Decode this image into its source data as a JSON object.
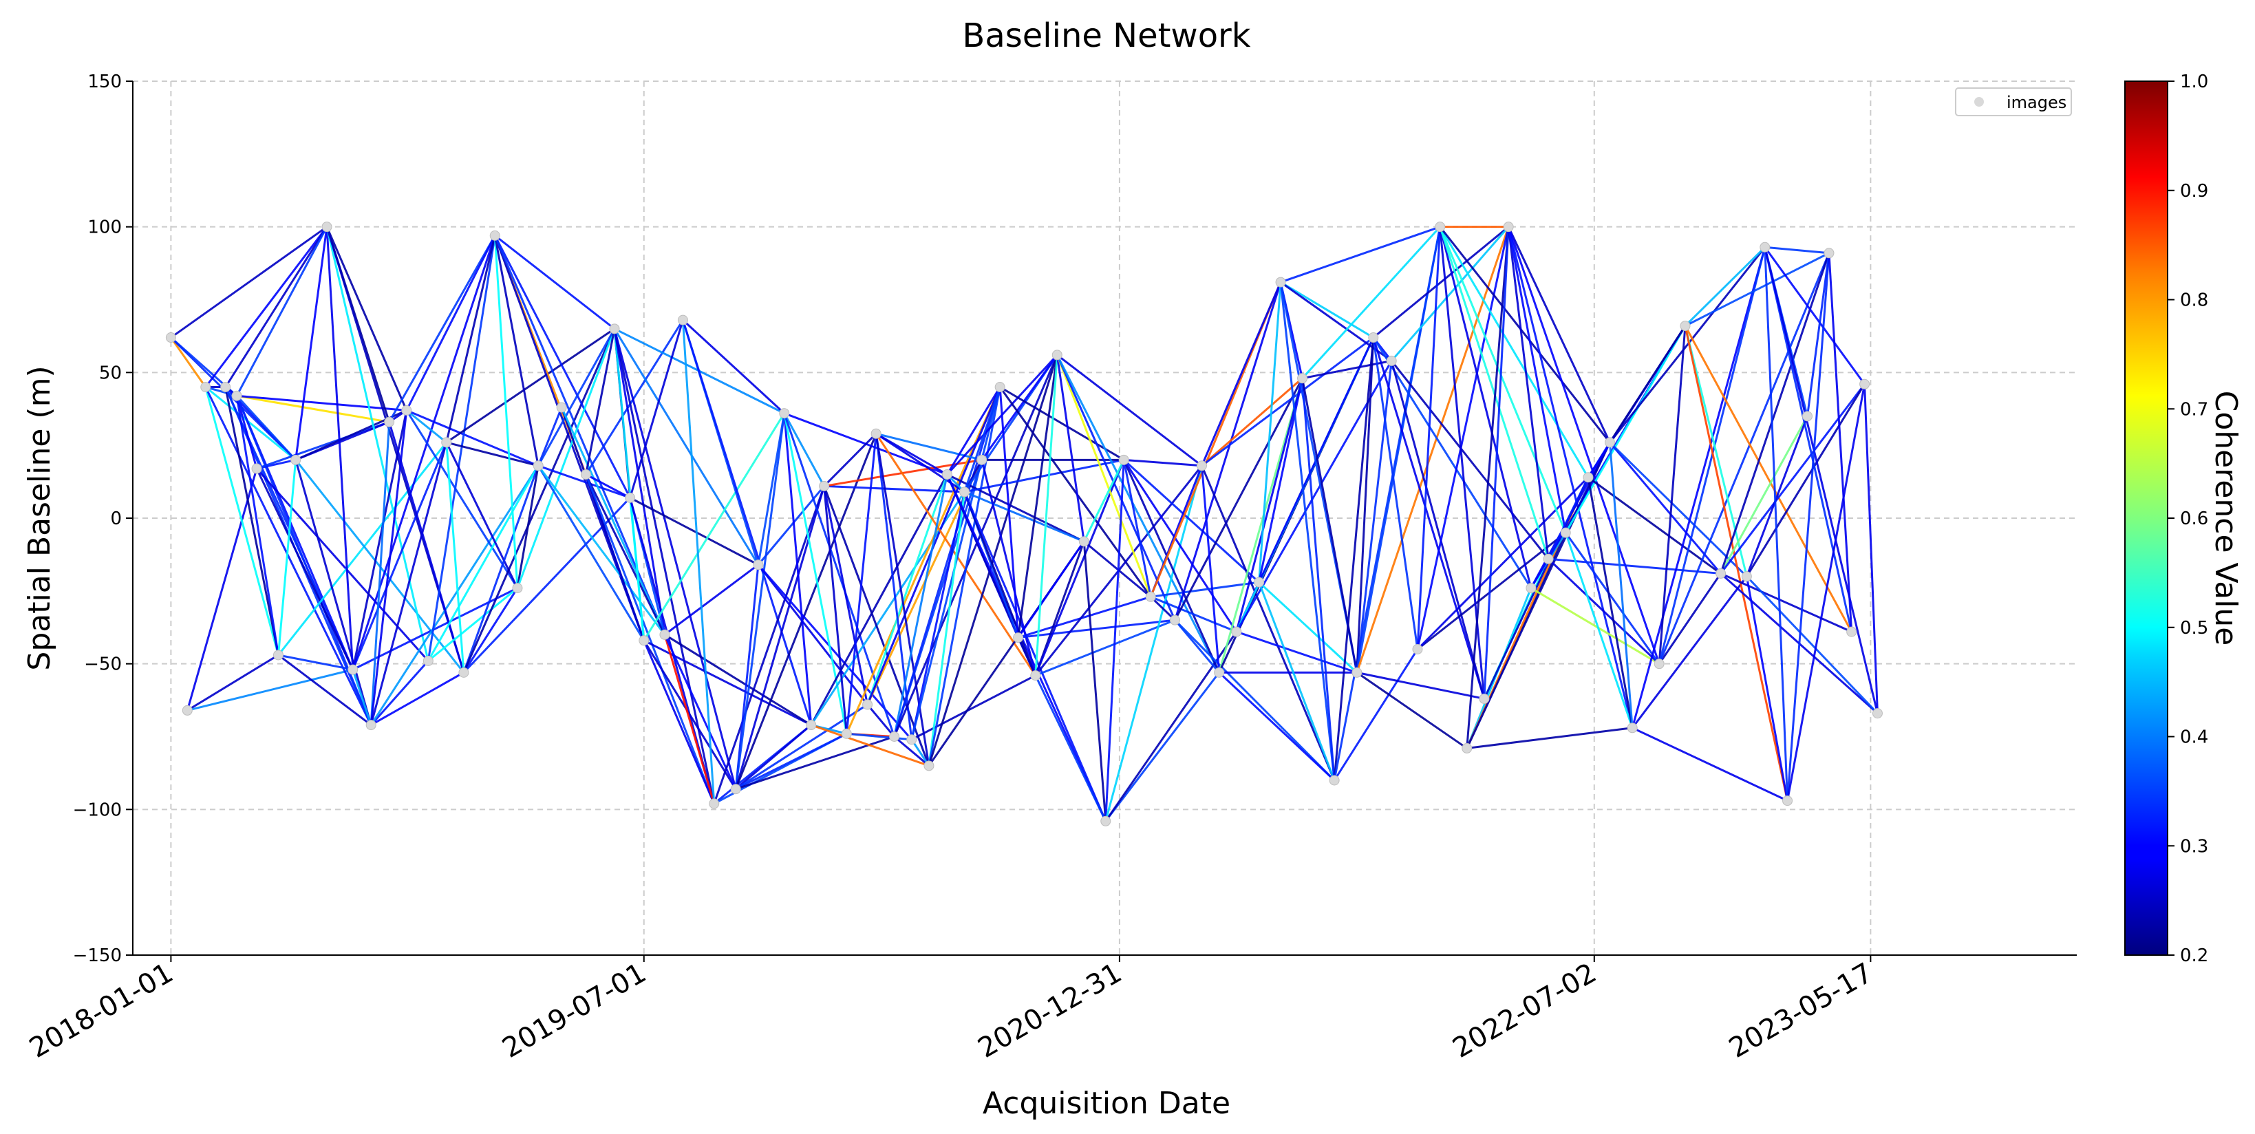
{
  "chart_data": {
    "type": "network",
    "title": "Baseline Network",
    "xlabel": "Acquisition Date",
    "ylabel": "Spatial Baseline (m)",
    "xlim": [
      "2017-11-18",
      "2024-01-10"
    ],
    "ylim": [
      -150,
      150
    ],
    "x_ticks": [
      "2018-01-01",
      "2019-07-01",
      "2020-12-31",
      "2022-07-02",
      "2023-05-17"
    ],
    "y_ticks": [
      150,
      100,
      50,
      0,
      -50,
      -100,
      -150
    ],
    "grid": true,
    "legend": {
      "position": "top-right",
      "entries": [
        "images"
      ]
    },
    "colorbar": {
      "label": "Coherence Value",
      "cmap": "jet",
      "min": 0.2,
      "max": 1.0,
      "ticks": [
        "1.0",
        "0.9",
        "0.8",
        "0.7",
        "0.6",
        "0.5",
        "0.4",
        "0.3",
        "0.2"
      ]
    },
    "images": [
      {
        "date": "2018-01-01",
        "baseline": 62
      },
      {
        "date": "2018-01-20",
        "baseline": -66
      },
      {
        "date": "2018-02-10",
        "baseline": 45
      },
      {
        "date": "2018-03-05",
        "baseline": 45
      },
      {
        "date": "2018-03-18",
        "baseline": 42
      },
      {
        "date": "2018-04-10",
        "baseline": 17
      },
      {
        "date": "2018-05-05",
        "baseline": -47
      },
      {
        "date": "2018-05-25",
        "baseline": 20
      },
      {
        "date": "2018-06-30",
        "baseline": 100
      },
      {
        "date": "2018-07-30",
        "baseline": -52
      },
      {
        "date": "2018-08-20",
        "baseline": -71
      },
      {
        "date": "2018-09-10",
        "baseline": 33
      },
      {
        "date": "2018-09-30",
        "baseline": 37
      },
      {
        "date": "2018-10-25",
        "baseline": -49
      },
      {
        "date": "2018-11-15",
        "baseline": 26
      },
      {
        "date": "2018-12-05",
        "baseline": -53
      },
      {
        "date": "2019-01-10",
        "baseline": 97
      },
      {
        "date": "2019-02-05",
        "baseline": -24
      },
      {
        "date": "2019-03-01",
        "baseline": 18
      },
      {
        "date": "2019-03-28",
        "baseline": 38
      },
      {
        "date": "2019-04-25",
        "baseline": 15
      },
      {
        "date": "2019-05-28",
        "baseline": 65
      },
      {
        "date": "2019-06-15",
        "baseline": 7
      },
      {
        "date": "2019-07-01",
        "baseline": -42
      },
      {
        "date": "2019-07-25",
        "baseline": -40
      },
      {
        "date": "2019-08-15",
        "baseline": 68
      },
      {
        "date": "2019-09-20",
        "baseline": -98
      },
      {
        "date": "2019-10-15",
        "baseline": -93
      },
      {
        "date": "2019-11-10",
        "baseline": -16
      },
      {
        "date": "2019-12-10",
        "baseline": 36
      },
      {
        "date": "2020-01-10",
        "baseline": -71
      },
      {
        "date": "2020-01-25",
        "baseline": 11
      },
      {
        "date": "2020-02-20",
        "baseline": -74
      },
      {
        "date": "2020-03-15",
        "baseline": -64
      },
      {
        "date": "2020-03-25",
        "baseline": 29
      },
      {
        "date": "2020-04-15",
        "baseline": -75
      },
      {
        "date": "2020-05-05",
        "baseline": -76
      },
      {
        "date": "2020-05-25",
        "baseline": -85
      },
      {
        "date": "2020-06-15",
        "baseline": 15
      },
      {
        "date": "2020-07-05",
        "baseline": 9
      },
      {
        "date": "2020-07-25",
        "baseline": 20
      },
      {
        "date": "2020-08-15",
        "baseline": 45
      },
      {
        "date": "2020-09-05",
        "baseline": -41
      },
      {
        "date": "2020-09-25",
        "baseline": -54
      },
      {
        "date": "2020-10-20",
        "baseline": 56
      },
      {
        "date": "2020-11-20",
        "baseline": -8
      },
      {
        "date": "2020-12-15",
        "baseline": -104
      },
      {
        "date": "2021-01-05",
        "baseline": 20
      },
      {
        "date": "2021-02-05",
        "baseline": -27
      },
      {
        "date": "2021-03-05",
        "baseline": -35
      },
      {
        "date": "2021-04-05",
        "baseline": 18
      },
      {
        "date": "2021-04-25",
        "baseline": -53
      },
      {
        "date": "2021-05-15",
        "baseline": -39
      },
      {
        "date": "2021-06-10",
        "baseline": -22
      },
      {
        "date": "2021-07-05",
        "baseline": 81
      },
      {
        "date": "2021-07-30",
        "baseline": 48
      },
      {
        "date": "2021-09-05",
        "baseline": -90
      },
      {
        "date": "2021-10-01",
        "baseline": -53
      },
      {
        "date": "2021-10-20",
        "baseline": 62
      },
      {
        "date": "2021-11-10",
        "baseline": 54
      },
      {
        "date": "2021-12-10",
        "baseline": -45
      },
      {
        "date": "2022-01-05",
        "baseline": 100
      },
      {
        "date": "2022-02-05",
        "baseline": -79
      },
      {
        "date": "2022-02-25",
        "baseline": -62
      },
      {
        "date": "2022-03-25",
        "baseline": 100
      },
      {
        "date": "2022-04-20",
        "baseline": -24
      },
      {
        "date": "2022-05-10",
        "baseline": -14
      },
      {
        "date": "2022-05-30",
        "baseline": -5
      },
      {
        "date": "2022-06-25",
        "baseline": 14
      },
      {
        "date": "2022-07-20",
        "baseline": 26
      },
      {
        "date": "2022-08-15",
        "baseline": -72
      },
      {
        "date": "2022-09-15",
        "baseline": -50
      },
      {
        "date": "2022-10-15",
        "baseline": 66
      },
      {
        "date": "2022-11-25",
        "baseline": -19
      },
      {
        "date": "2022-12-25",
        "baseline": -20
      },
      {
        "date": "2023-01-15",
        "baseline": 93
      },
      {
        "date": "2023-02-10",
        "baseline": -97
      },
      {
        "date": "2023-03-05",
        "baseline": 35
      },
      {
        "date": "2023-03-30",
        "baseline": 91
      },
      {
        "date": "2023-04-25",
        "baseline": -39
      },
      {
        "date": "2023-05-10",
        "baseline": 46
      },
      {
        "date": "2023-05-25",
        "baseline": -67
      }
    ]
  }
}
